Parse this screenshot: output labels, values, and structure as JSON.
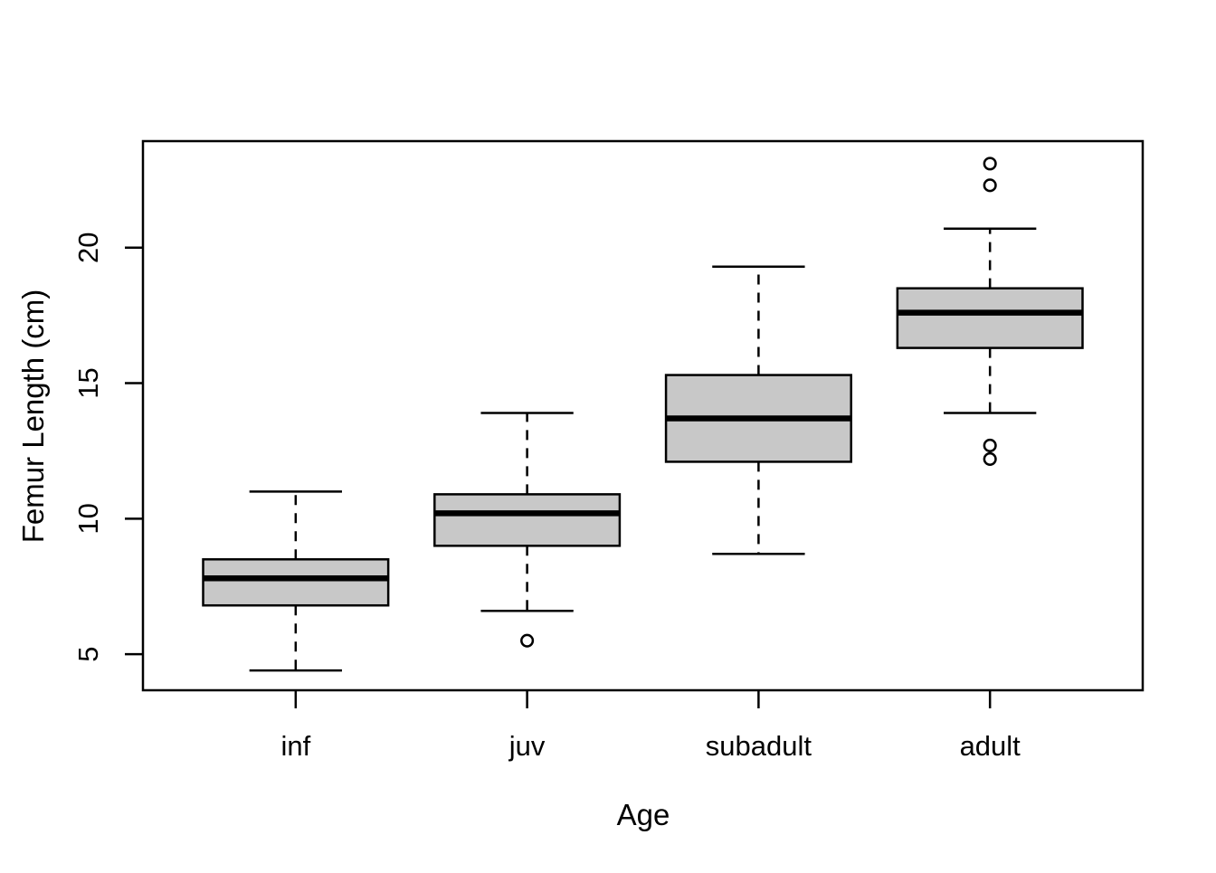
{
  "chart_data": {
    "type": "boxplot",
    "title": "",
    "xlabel": "Age",
    "ylabel": "Femur Length (cm)",
    "categories": [
      "inf",
      "juv",
      "subadult",
      "adult"
    ],
    "y_ticks": [
      5,
      10,
      15,
      20
    ],
    "ylim": [
      3.67,
      23.93
    ],
    "grid": false,
    "legend": "none",
    "series": [
      {
        "category": "inf",
        "whisker_low": 4.4,
        "q1": 6.8,
        "median": 7.8,
        "q3": 8.5,
        "whisker_high": 11.0,
        "outliers": []
      },
      {
        "category": "juv",
        "whisker_low": 6.6,
        "q1": 9.0,
        "median": 10.2,
        "q3": 10.9,
        "whisker_high": 13.9,
        "outliers": [
          5.5
        ]
      },
      {
        "category": "subadult",
        "whisker_low": 8.7,
        "q1": 12.1,
        "median": 13.7,
        "q3": 15.3,
        "whisker_high": 19.3,
        "outliers": []
      },
      {
        "category": "adult",
        "whisker_low": 13.9,
        "q1": 16.3,
        "median": 17.6,
        "q3": 18.5,
        "whisker_high": 20.7,
        "outliers": [
          23.1,
          22.3,
          12.7,
          12.2
        ]
      }
    ],
    "colors": {
      "box_fill": "#c8c8c8",
      "line": "#000000",
      "background": "#ffffff"
    }
  }
}
